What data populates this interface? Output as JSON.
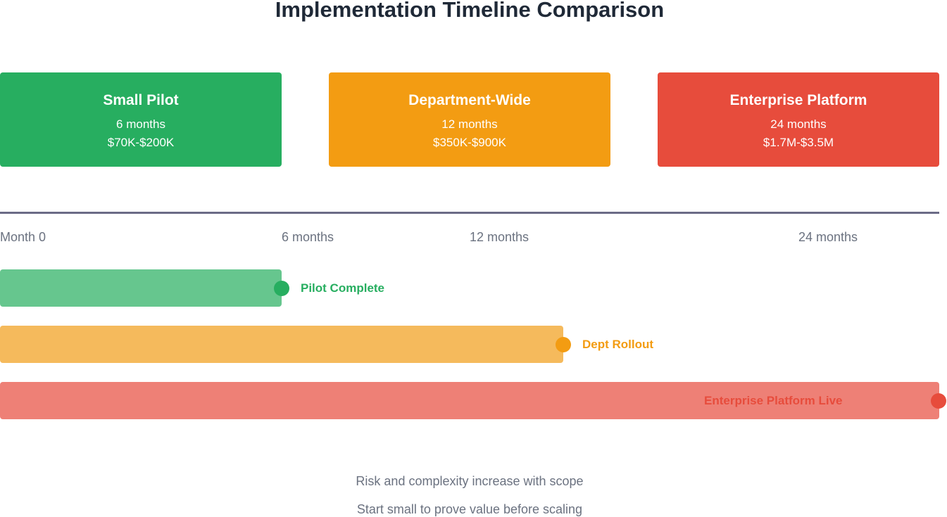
{
  "title": "Implementation Timeline Comparison",
  "colors": {
    "green": "#27ae60",
    "orange": "#f39c12",
    "red": "#e74c3c",
    "axis": "#6b6b86",
    "muted_text": "#6b7280"
  },
  "options": [
    {
      "name": "Small Pilot",
      "duration": "6 months",
      "cost": "$70K-$200K",
      "color": "#27ae60"
    },
    {
      "name": "Department-Wide",
      "duration": "12 months",
      "cost": "$350K-$900K",
      "color": "#f39c12"
    },
    {
      "name": "Enterprise Platform",
      "duration": "24 months",
      "cost": "$1.7M-$3.5M",
      "color": "#e74c3c"
    }
  ],
  "timeline": {
    "tick_labels": [
      "Month 0",
      "6 months",
      "12 months",
      "24 months"
    ],
    "bars": [
      {
        "label": "Pilot Complete",
        "color": "#27ae60",
        "bar_color": "#66c68e",
        "end_fraction": 0.3
      },
      {
        "label": "Dept Rollout",
        "color": "#f39c12",
        "bar_color": "#f5ba5c",
        "end_fraction": 0.6
      },
      {
        "label": "Enterprise Platform Live",
        "color": "#e74c3c",
        "bar_color": "#ee8076",
        "end_fraction": 1.0
      }
    ]
  },
  "notes": [
    "Risk and complexity increase with scope",
    "Start small to prove value before scaling"
  ]
}
